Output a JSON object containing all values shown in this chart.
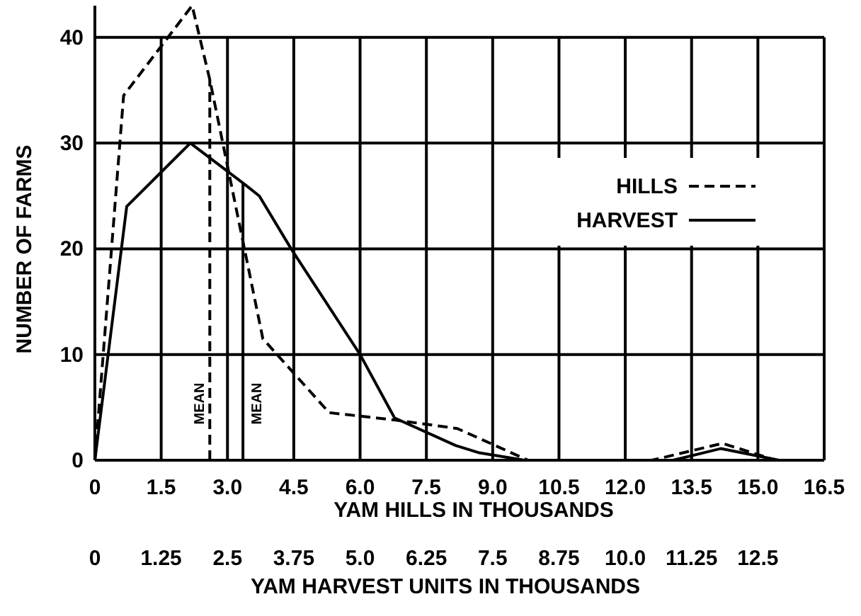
{
  "chart_data": {
    "type": "line",
    "xlabel": "YAM HILLS IN THOUSANDS",
    "x2label": "YAM HARVEST UNITS IN THOUSANDS",
    "ylabel": "NUMBER OF FARMS",
    "xlim": [
      0,
      16.5
    ],
    "xticks": [
      0,
      1.5,
      {
        "value": 3,
        "label": "3.0"
      },
      4.5,
      {
        "value": 6,
        "label": "6.0"
      },
      7.5,
      {
        "value": 9,
        "label": "9.0"
      },
      10.5,
      {
        "value": 12,
        "label": "12.0"
      },
      13.5,
      {
        "value": 15,
        "label": "15.0"
      },
      16.5
    ],
    "x2lim": [
      0,
      13.75
    ],
    "x2ticks": [
      0,
      1.25,
      2.5,
      3.75,
      {
        "value": 5,
        "label": "5.0"
      },
      6.25,
      7.5,
      8.75,
      {
        "value": 10,
        "label": "10.0"
      },
      11.25,
      12.5
    ],
    "ylim": [
      0,
      43
    ],
    "yticks": [
      0,
      10,
      20,
      30,
      40
    ],
    "grid": true,
    "legend": "right",
    "series": [
      {
        "name": "HILLS",
        "color": "#000000",
        "line_style": "dashed",
        "x": [
          0,
          0.65,
          2.2,
          2.6,
          3.8,
          5.3,
          6.8,
          8.2,
          9.8,
          12.6,
          14.2,
          15.4
        ],
        "values": [
          0,
          34.5,
          43,
          36,
          11.5,
          4.5,
          3.8,
          3,
          0,
          0,
          1.6,
          0
        ]
      },
      {
        "name": "HARVEST",
        "color": "#000000",
        "line_style": "solid",
        "axis": "x2",
        "x": [
          0,
          0.6,
          1.8,
          2.85,
          3.1,
          3.7,
          5,
          5.65,
          6.8,
          7.25,
          8.1,
          10.9,
          11.8,
          12.9
        ],
        "values": [
          0,
          24,
          30,
          26,
          25,
          20,
          10,
          4,
          1.4,
          0.7,
          0,
          0,
          1.1,
          0
        ]
      }
    ],
    "ref_lines": [
      {
        "axis": "x",
        "value": 2.6,
        "label": "MEAN",
        "line_style": "dashed"
      },
      {
        "axis": "x",
        "value": 3.35,
        "label": "MEAN",
        "line_style": "solid"
      }
    ]
  }
}
